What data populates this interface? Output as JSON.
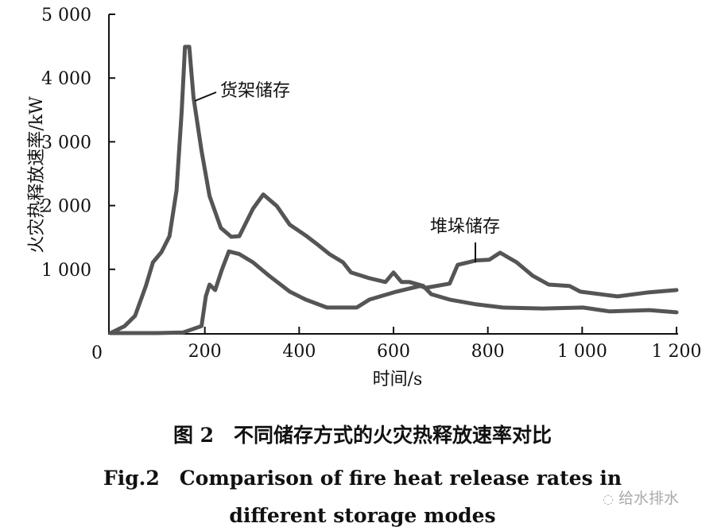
{
  "chart_data": {
    "type": "line",
    "title": "",
    "xlabel": "时间/s",
    "ylabel": "火灾热释放速率/kW",
    "xlim": [
      0,
      1200
    ],
    "ylim": [
      0,
      5000
    ],
    "x_ticks": [
      200,
      400,
      600,
      800,
      1000,
      1200
    ],
    "x_tick_labels": [
      "200",
      "400",
      "600",
      "800",
      "1 000",
      "1 200"
    ],
    "y_ticks": [
      1000,
      2000,
      3000,
      4000,
      5000
    ],
    "y_tick_labels": [
      "1 000",
      "2 000",
      "3 000",
      "4 000",
      "5 000"
    ],
    "origin_label": "0",
    "grid": false,
    "series": [
      {
        "name": "货架储存",
        "color": "#555555",
        "x": [
          0,
          30,
          52,
          75,
          90,
          108,
          125,
          140,
          151,
          158,
          167,
          176,
          193,
          210,
          234,
          256,
          273,
          302,
          324,
          353,
          380,
          414,
          437,
          464,
          493,
          510,
          549,
          583,
          600,
          617,
          634,
          663,
          680,
          719,
          776,
          832,
          917,
          1002,
          1058,
          1142,
          1200
        ],
        "y": [
          0,
          110,
          270,
          740,
          1110,
          1270,
          1520,
          2240,
          3490,
          4490,
          4490,
          3700,
          2860,
          2150,
          1650,
          1510,
          1520,
          1950,
          2175,
          1990,
          1700,
          1530,
          1400,
          1240,
          1110,
          950,
          860,
          800,
          950,
          800,
          800,
          740,
          610,
          525,
          450,
          400,
          385,
          400,
          340,
          360,
          325
        ]
      },
      {
        "name": "堆垛储存",
        "color": "#555555",
        "x": [
          0,
          100,
          154,
          193,
          202,
          210,
          222,
          236,
          251,
          273,
          302,
          336,
          380,
          414,
          459,
          522,
          549,
          606,
          657,
          668,
          719,
          736,
          776,
          803,
          826,
          861,
          895,
          929,
          973,
          996,
          1075,
          1142,
          1200
        ],
        "y": [
          0,
          0,
          10,
          110,
          575,
          760,
          675,
          990,
          1280,
          1240,
          1110,
          900,
          650,
          525,
          400,
          400,
          525,
          650,
          740,
          710,
          775,
          1070,
          1140,
          1150,
          1260,
          1110,
          900,
          760,
          740,
          650,
          575,
          640,
          675
        ]
      }
    ],
    "annotations": [
      {
        "text": "货架储存",
        "at_x": 168,
        "at_y": 3700
      },
      {
        "text": "堆垛储存",
        "at_x": 780,
        "at_y": 1150
      }
    ]
  },
  "caption": {
    "cn": "图 2　不同储存方式的火灾热释放速率对比",
    "en_line1": "Fig.2　Comparison of fire heat release rates in",
    "en_line2": "different storage modes"
  },
  "watermark": "给水排水"
}
